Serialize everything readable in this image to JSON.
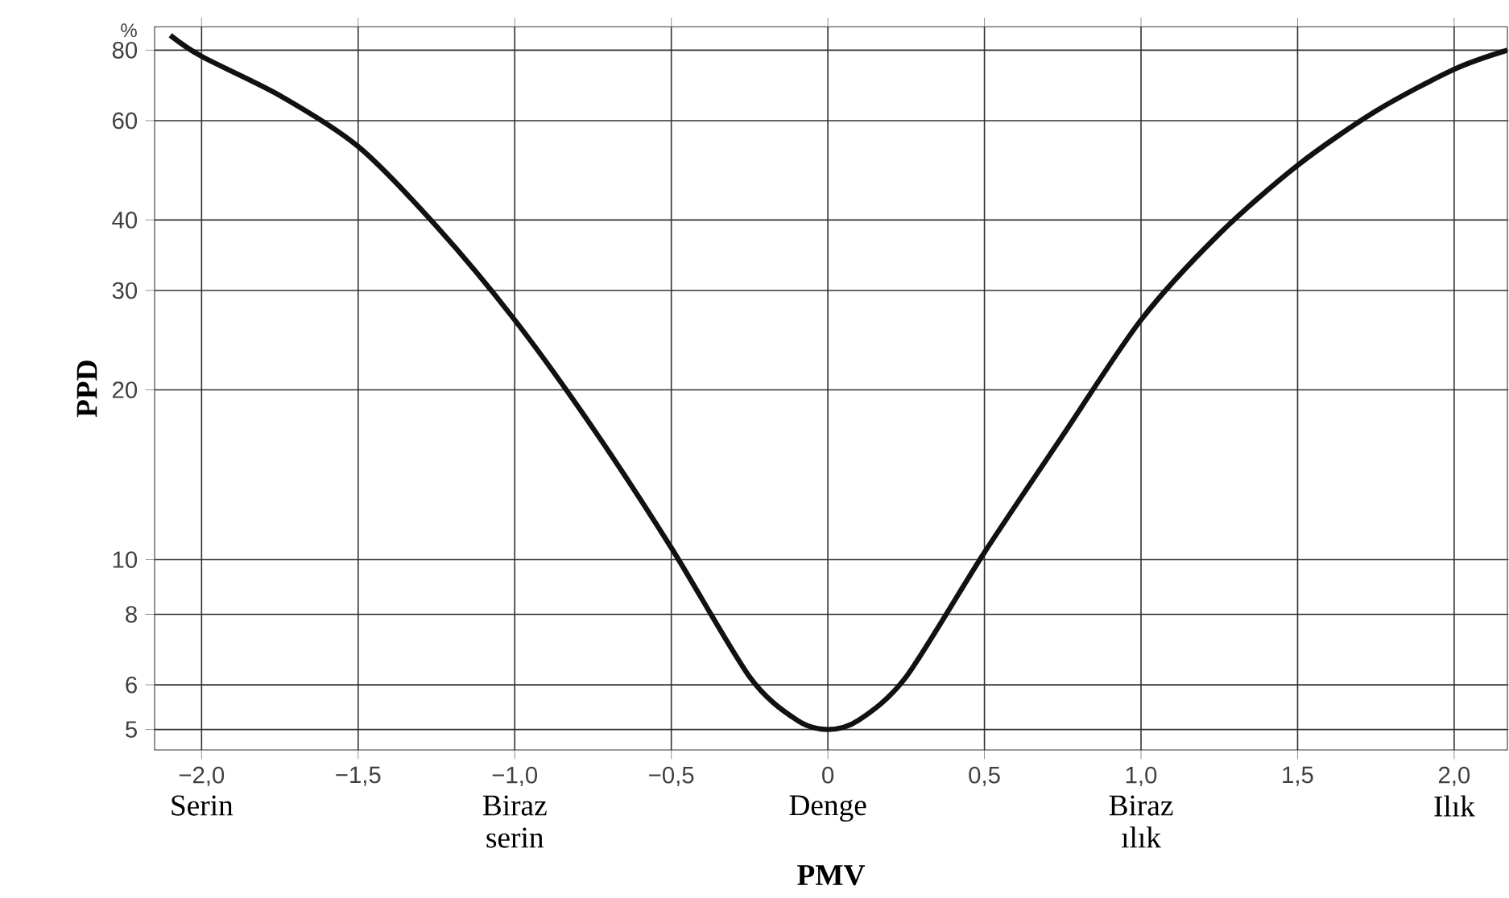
{
  "chart_data": {
    "type": "line",
    "xlabel": "PMV",
    "ylabel": "PPD",
    "annotations": [
      "%",
      "Serin",
      "Biraz serin",
      "Denge",
      "Biraz ılık",
      "Ilık"
    ],
    "x": [
      -2.1,
      -2.0,
      -1.75,
      -1.5,
      -1.25,
      -1.0,
      -0.75,
      -0.5,
      -0.25,
      -0.1,
      0,
      0.1,
      0.25,
      0.5,
      0.75,
      1.0,
      1.25,
      1.5,
      1.75,
      2.0,
      2.17
    ],
    "series": [
      {
        "color": "#111111",
        "values": [
          85,
          78,
          66.5,
          54,
          39,
          26.6,
          17.1,
          10.5,
          6.2,
          5.2,
          5,
          5.2,
          6.2,
          10.3,
          16.6,
          26.6,
          37.8,
          50,
          62.4,
          74,
          80
        ]
      }
    ],
    "log": "y",
    "grid": true,
    "marker": "none",
    "line_style": "solid",
    "xlim": [
      -2.15,
      2.17
    ],
    "ylim": [
      4.6,
      88
    ],
    "xticks": [
      {
        "value": -2.0,
        "label": "−2,0"
      },
      {
        "value": -1.5,
        "label": "−1,5"
      },
      {
        "value": -1.0,
        "label": "−1,0"
      },
      {
        "value": -0.5,
        "label": "−0,5"
      },
      {
        "value": 0,
        "label": "0"
      },
      {
        "value": 0.5,
        "label": "0,5"
      },
      {
        "value": 1.0,
        "label": "1,0"
      },
      {
        "value": 1.5,
        "label": "1,5"
      },
      {
        "value": 2.0,
        "label": "2,0"
      }
    ],
    "yticks": [
      5,
      6,
      8,
      10,
      20,
      30,
      40,
      60,
      80
    ]
  }
}
